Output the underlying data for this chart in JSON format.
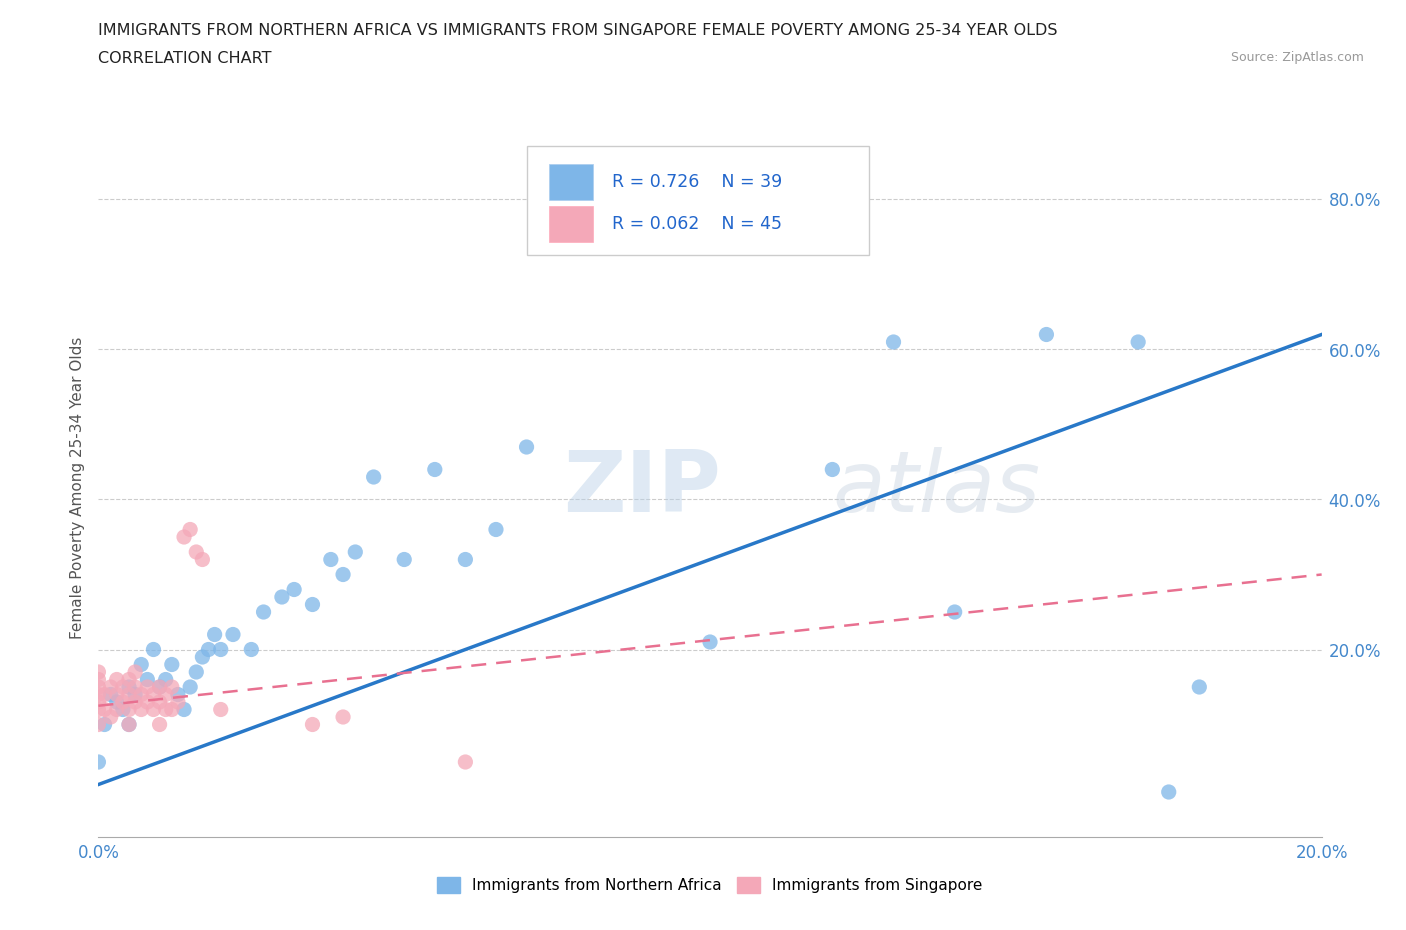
{
  "title_line1": "IMMIGRANTS FROM NORTHERN AFRICA VS IMMIGRANTS FROM SINGAPORE FEMALE POVERTY AMONG 25-34 YEAR OLDS",
  "title_line2": "CORRELATION CHART",
  "source_text": "Source: ZipAtlas.com",
  "ylabel": "Female Poverty Among 25-34 Year Olds",
  "xlim": [
    0.0,
    0.2
  ],
  "ylim": [
    -0.05,
    0.88
  ],
  "ytick_positions": [
    0.2,
    0.4,
    0.6,
    0.8
  ],
  "color_blue": "#7EB6E8",
  "color_pink": "#F4A8B8",
  "line_blue": "#2878C8",
  "line_pink": "#E87090",
  "watermark_zip": "ZIP",
  "watermark_atlas": "atlas",
  "blue_scatter_x": [
    0.0,
    0.001,
    0.002,
    0.003,
    0.004,
    0.005,
    0.005,
    0.006,
    0.007,
    0.008,
    0.009,
    0.01,
    0.011,
    0.012,
    0.013,
    0.014,
    0.015,
    0.016,
    0.017,
    0.018,
    0.019,
    0.02,
    0.022,
    0.025,
    0.027,
    0.03,
    0.032,
    0.035,
    0.038,
    0.04,
    0.042,
    0.045,
    0.05,
    0.055,
    0.06,
    0.065,
    0.07,
    0.1,
    0.12,
    0.13,
    0.14,
    0.155,
    0.17,
    0.175,
    0.18
  ],
  "blue_scatter_y": [
    0.05,
    0.1,
    0.14,
    0.13,
    0.12,
    0.1,
    0.15,
    0.14,
    0.18,
    0.16,
    0.2,
    0.15,
    0.16,
    0.18,
    0.14,
    0.12,
    0.15,
    0.17,
    0.19,
    0.2,
    0.22,
    0.2,
    0.22,
    0.2,
    0.25,
    0.27,
    0.28,
    0.26,
    0.32,
    0.3,
    0.33,
    0.43,
    0.32,
    0.44,
    0.32,
    0.36,
    0.47,
    0.21,
    0.44,
    0.61,
    0.25,
    0.62,
    0.61,
    0.01,
    0.15
  ],
  "pink_scatter_x": [
    0.0,
    0.0,
    0.0,
    0.0,
    0.0,
    0.0,
    0.0,
    0.001,
    0.001,
    0.002,
    0.002,
    0.003,
    0.003,
    0.003,
    0.004,
    0.004,
    0.005,
    0.005,
    0.005,
    0.005,
    0.006,
    0.006,
    0.006,
    0.007,
    0.007,
    0.008,
    0.008,
    0.009,
    0.009,
    0.01,
    0.01,
    0.01,
    0.011,
    0.011,
    0.012,
    0.012,
    0.013,
    0.014,
    0.015,
    0.016,
    0.017,
    0.02,
    0.035,
    0.04,
    0.06
  ],
  "pink_scatter_y": [
    0.1,
    0.12,
    0.13,
    0.14,
    0.15,
    0.16,
    0.17,
    0.12,
    0.14,
    0.11,
    0.15,
    0.12,
    0.14,
    0.16,
    0.13,
    0.15,
    0.1,
    0.12,
    0.14,
    0.16,
    0.13,
    0.15,
    0.17,
    0.12,
    0.14,
    0.13,
    0.15,
    0.12,
    0.14,
    0.1,
    0.13,
    0.15,
    0.12,
    0.14,
    0.12,
    0.15,
    0.13,
    0.35,
    0.36,
    0.33,
    0.32,
    0.12,
    0.1,
    0.11,
    0.05
  ],
  "blue_line_x0": 0.0,
  "blue_line_y0": 0.02,
  "blue_line_x1": 0.2,
  "blue_line_y1": 0.62,
  "pink_line_x0": 0.0,
  "pink_line_y0": 0.125,
  "pink_line_x1": 0.2,
  "pink_line_y1": 0.3
}
